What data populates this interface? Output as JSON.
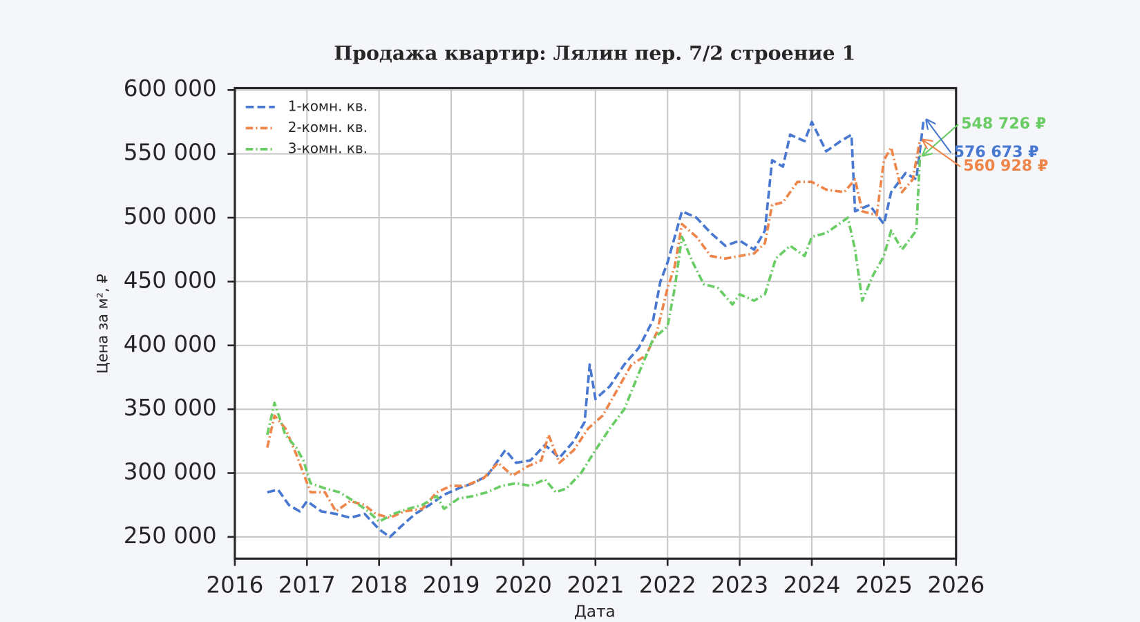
{
  "chart_data": {
    "type": "line",
    "title": "Продажа квартир: Лялин пер. 7/2 строение 1",
    "x_label": "Дата",
    "y_label": "Цена за м², ₽",
    "xlim": [
      2016,
      2026
    ],
    "xticks": [
      2016,
      2017,
      2018,
      2019,
      2020,
      2021,
      2022,
      2023,
      2024,
      2025,
      2026
    ],
    "ylim": [
      233000,
      601500
    ],
    "yticks": [
      {
        "value": 250000,
        "label": "250 000"
      },
      {
        "value": 300000,
        "label": "300 000"
      },
      {
        "value": 350000,
        "label": "350 000"
      },
      {
        "value": 400000,
        "label": "400 000"
      },
      {
        "value": 450000,
        "label": "450 000"
      },
      {
        "value": 500000,
        "label": "500 000"
      },
      {
        "value": 550000,
        "label": "550 000"
      },
      {
        "value": 600000,
        "label": "600 000"
      }
    ],
    "grid": true,
    "legend": "upper left",
    "series": [
      {
        "name": "1-комн. кв.",
        "color": "#4878d0",
        "style": "dashed",
        "x": [
          2016.45,
          2016.6,
          2016.75,
          2016.9,
          2017.0,
          2017.2,
          2017.4,
          2017.6,
          2017.8,
          2018.0,
          2018.15,
          2018.3,
          2018.5,
          2018.7,
          2018.9,
          2019.1,
          2019.3,
          2019.5,
          2019.75,
          2019.9,
          2020.1,
          2020.3,
          2020.5,
          2020.7,
          2020.85,
          2020.92,
          2021.0,
          2021.2,
          2021.4,
          2021.6,
          2021.8,
          2021.9,
          2022.0,
          2022.2,
          2022.4,
          2022.6,
          2022.8,
          2023.0,
          2023.2,
          2023.35,
          2023.45,
          2023.6,
          2023.7,
          2023.9,
          2024.0,
          2024.2,
          2024.4,
          2024.55,
          2024.6,
          2024.8,
          2025.0,
          2025.1,
          2025.3,
          2025.45,
          2025.55
        ],
        "values": [
          285000,
          287000,
          275000,
          270000,
          278000,
          270000,
          268000,
          265000,
          268000,
          256000,
          250000,
          258000,
          268000,
          275000,
          283000,
          288000,
          292000,
          298000,
          318000,
          308000,
          310000,
          322000,
          312000,
          325000,
          340000,
          385000,
          358000,
          368000,
          385000,
          398000,
          420000,
          450000,
          465000,
          505000,
          500000,
          488000,
          478000,
          482000,
          475000,
          490000,
          545000,
          540000,
          565000,
          560000,
          575000,
          552000,
          560000,
          565000,
          505000,
          510000,
          495000,
          520000,
          535000,
          530000,
          576673
        ]
      },
      {
        "name": "2-комн. кв.",
        "color": "#ee854a",
        "style": "dashdot",
        "x": [
          2016.45,
          2016.55,
          2016.7,
          2016.85,
          2016.95,
          2017.05,
          2017.25,
          2017.4,
          2017.6,
          2017.8,
          2017.95,
          2018.15,
          2018.35,
          2018.6,
          2018.8,
          2019.0,
          2019.2,
          2019.45,
          2019.65,
          2019.85,
          2020.05,
          2020.25,
          2020.35,
          2020.5,
          2020.7,
          2020.9,
          2021.1,
          2021.3,
          2021.5,
          2021.7,
          2021.85,
          2022.0,
          2022.1,
          2022.2,
          2022.4,
          2022.6,
          2022.8,
          2023.0,
          2023.2,
          2023.35,
          2023.45,
          2023.6,
          2023.8,
          2024.0,
          2024.2,
          2024.45,
          2024.6,
          2024.7,
          2024.9,
          2025.0,
          2025.1,
          2025.25,
          2025.4,
          2025.5
        ],
        "values": [
          320000,
          345000,
          335000,
          315000,
          300000,
          285000,
          285000,
          270000,
          278000,
          275000,
          268000,
          265000,
          270000,
          272000,
          285000,
          290000,
          290000,
          296000,
          308000,
          298000,
          305000,
          310000,
          330000,
          308000,
          318000,
          335000,
          345000,
          365000,
          385000,
          392000,
          410000,
          445000,
          462000,
          495000,
          485000,
          470000,
          468000,
          470000,
          472000,
          480000,
          510000,
          512000,
          528000,
          528000,
          522000,
          520000,
          530000,
          505000,
          502000,
          545000,
          555000,
          520000,
          530000,
          560928
        ]
      },
      {
        "name": "3-комн. кв.",
        "color": "#6acc64",
        "style": "dashdot",
        "x": [
          2016.45,
          2016.55,
          2016.7,
          2016.85,
          2016.95,
          2017.05,
          2017.25,
          2017.45,
          2017.65,
          2017.85,
          2018.0,
          2018.2,
          2018.4,
          2018.6,
          2018.8,
          2018.9,
          2019.1,
          2019.3,
          2019.5,
          2019.7,
          2019.9,
          2020.1,
          2020.3,
          2020.45,
          2020.6,
          2020.8,
          2021.0,
          2021.2,
          2021.4,
          2021.6,
          2021.8,
          2022.0,
          2022.1,
          2022.2,
          2022.35,
          2022.5,
          2022.7,
          2022.9,
          2023.0,
          2023.2,
          2023.35,
          2023.5,
          2023.7,
          2023.9,
          2024.0,
          2024.2,
          2024.5,
          2024.6,
          2024.7,
          2024.85,
          2025.0,
          2025.1,
          2025.25,
          2025.45,
          2025.5
        ],
        "values": [
          330000,
          355000,
          330000,
          320000,
          310000,
          292000,
          288000,
          285000,
          278000,
          270000,
          262000,
          268000,
          272000,
          275000,
          282000,
          272000,
          280000,
          282000,
          285000,
          290000,
          292000,
          290000,
          295000,
          285000,
          288000,
          300000,
          318000,
          335000,
          350000,
          378000,
          405000,
          415000,
          445000,
          485000,
          465000,
          448000,
          445000,
          432000,
          440000,
          435000,
          440000,
          468000,
          478000,
          470000,
          485000,
          488000,
          500000,
          475000,
          435000,
          455000,
          470000,
          490000,
          475000,
          490000,
          548726
        ]
      }
    ],
    "annotations": [
      {
        "text": "548 726 ₽",
        "value": 548726,
        "series": 2
      },
      {
        "text": "576 673 ₽",
        "value": 576673,
        "series": 0
      },
      {
        "text": "560 928 ₽",
        "value": 560928,
        "series": 1
      }
    ]
  }
}
